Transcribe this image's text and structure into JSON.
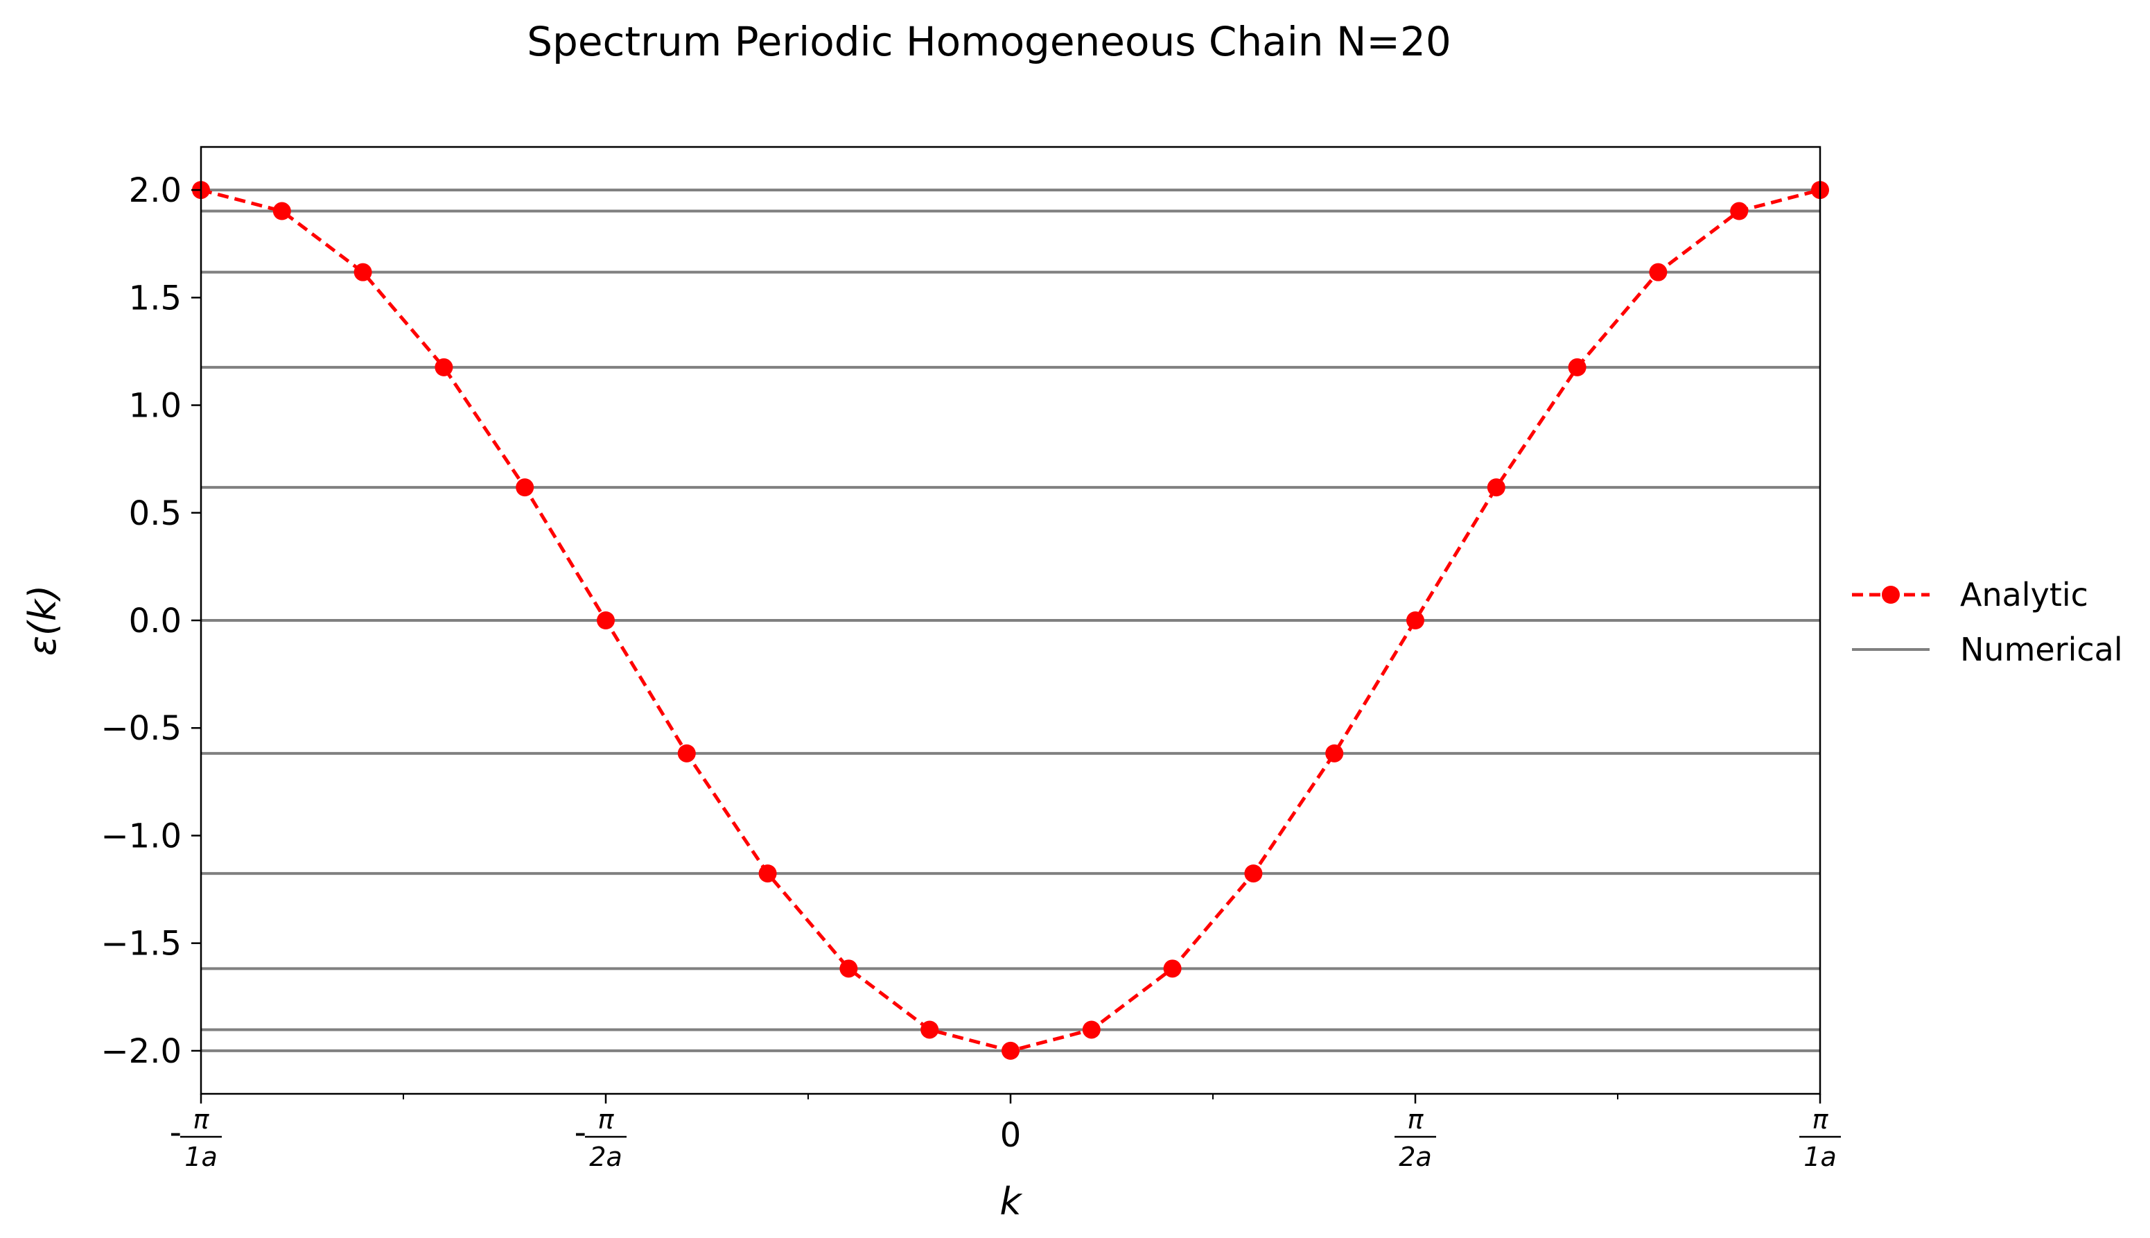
{
  "chart_data": {
    "type": "line",
    "title": "Spectrum Periodic Homogeneous Chain N=20",
    "xlabel": "k",
    "ylabel": "ε(k)",
    "xlim": [
      -3.14159265,
      3.14159265
    ],
    "ylim": [
      -2.2,
      2.2
    ],
    "x_ticks": [
      {
        "value": -3.14159265,
        "sign": "-",
        "num": "π",
        "den": "1a"
      },
      {
        "value": -1.57079633,
        "sign": "-",
        "num": "π",
        "den": "2a"
      },
      {
        "value": 0,
        "label": "0"
      },
      {
        "value": 1.57079633,
        "sign": "",
        "num": "π",
        "den": "2a"
      },
      {
        "value": 3.14159265,
        "sign": "",
        "num": "π",
        "den": "1a"
      }
    ],
    "x_minor_ticks": [
      -2.35619449,
      -0.78539816,
      0.78539816,
      2.35619449
    ],
    "y_ticks": [
      {
        "value": 2.0,
        "label": "2.0"
      },
      {
        "value": 1.5,
        "label": "1.5"
      },
      {
        "value": 1.0,
        "label": "1.0"
      },
      {
        "value": 0.5,
        "label": "0.5"
      },
      {
        "value": 0.0,
        "label": "0.0"
      },
      {
        "value": -0.5,
        "label": "−0.5"
      },
      {
        "value": -1.0,
        "label": "−1.0"
      },
      {
        "value": -1.5,
        "label": "−1.5"
      },
      {
        "value": -2.0,
        "label": "−2.0"
      }
    ],
    "grid": false,
    "legend_position": "right-outside",
    "series": [
      {
        "name": "Analytic",
        "style": "dashed-with-markers",
        "color": "#ff0000",
        "x": [
          -3.14159265,
          -2.82743339,
          -2.51327412,
          -2.19911486,
          -1.88495559,
          -1.57079633,
          -1.25663706,
          -0.9424778,
          -0.62831853,
          -0.31415927,
          0.0,
          0.31415927,
          0.62831853,
          0.9424778,
          1.25663706,
          1.57079633,
          1.88495559,
          2.19911486,
          2.51327412,
          2.82743339,
          3.14159265
        ],
        "y": [
          2.0,
          1.902,
          1.618,
          1.176,
          0.618,
          0.0,
          -0.618,
          -1.176,
          -1.618,
          -1.902,
          -2.0,
          -1.902,
          -1.618,
          -1.176,
          -0.618,
          0.0,
          0.618,
          1.176,
          1.618,
          1.902,
          2.0
        ]
      },
      {
        "name": "Numerical",
        "style": "horizontal-lines",
        "color": "#808080",
        "levels": [
          2.0,
          1.902,
          1.618,
          1.176,
          0.618,
          0.0,
          -0.618,
          -1.176,
          -1.618,
          -1.902,
          -2.0
        ]
      }
    ]
  }
}
